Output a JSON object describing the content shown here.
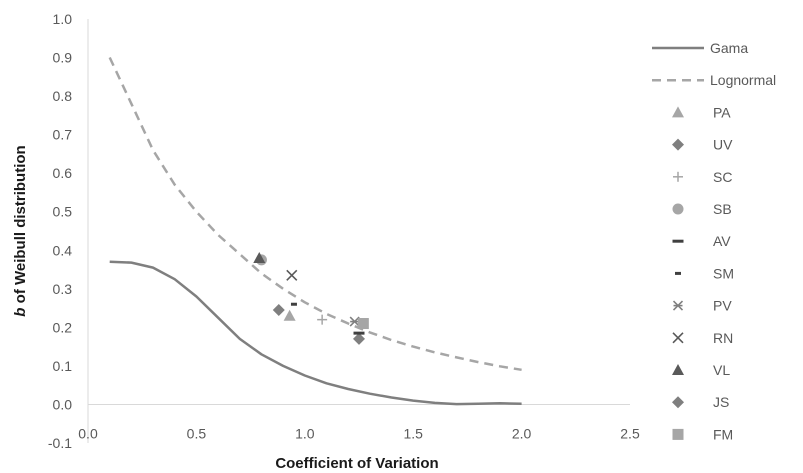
{
  "chart_data": {
    "type": "scatter",
    "title": "",
    "xlabel": "Coefficient of Variation",
    "ylabel_italic": "b",
    "ylabel_rest": " of Weibull distribution",
    "xlim": [
      0,
      2.5
    ],
    "ylim": [
      -0.1,
      1.0
    ],
    "x_ticks": [
      "0.0",
      "0.5",
      "1.0",
      "1.5",
      "2.0",
      "2.5"
    ],
    "y_ticks": [
      "-0.1",
      "0.0",
      "0.1",
      "0.2",
      "0.3",
      "0.4",
      "0.5",
      "0.6",
      "0.7",
      "0.8",
      "0.9",
      "1.0"
    ],
    "grid": false,
    "legend_position": "right",
    "lines": [
      {
        "name": "Gama",
        "style": "solid",
        "color": "#7f7f7f",
        "x": [
          0.1,
          0.2,
          0.3,
          0.4,
          0.5,
          0.6,
          0.7,
          0.8,
          0.9,
          1.0,
          1.1,
          1.2,
          1.3,
          1.4,
          1.5,
          1.6,
          1.7,
          1.8,
          1.9,
          2.0
        ],
        "y": [
          0.37,
          0.368,
          0.355,
          0.325,
          0.28,
          0.225,
          0.17,
          0.13,
          0.1,
          0.075,
          0.055,
          0.04,
          0.028,
          0.018,
          0.01,
          0.004,
          0.001,
          0.002,
          0.003,
          0.002
        ]
      },
      {
        "name": "Lognormal",
        "style": "dashed",
        "color": "#a6a6a6",
        "x": [
          0.1,
          0.2,
          0.3,
          0.4,
          0.5,
          0.6,
          0.7,
          0.8,
          0.9,
          1.0,
          1.1,
          1.2,
          1.3,
          1.4,
          1.5,
          1.6,
          1.7,
          1.8,
          1.9,
          2.0
        ],
        "y": [
          0.9,
          0.78,
          0.66,
          0.57,
          0.5,
          0.44,
          0.39,
          0.34,
          0.3,
          0.265,
          0.235,
          0.21,
          0.187,
          0.167,
          0.15,
          0.135,
          0.122,
          0.11,
          0.099,
          0.09
        ]
      }
    ],
    "series": [
      {
        "name": "PA",
        "marker": "triangle",
        "color": "#a6a6a6",
        "points": [
          [
            0.93,
            0.23
          ]
        ]
      },
      {
        "name": "UV",
        "marker": "diamond",
        "color": "#7f7f7f",
        "points": [
          [
            1.25,
            0.17
          ]
        ]
      },
      {
        "name": "SC",
        "marker": "plus",
        "color": "#a6a6a6",
        "points": [
          [
            1.08,
            0.22
          ]
        ]
      },
      {
        "name": "SB",
        "marker": "circle",
        "color": "#a6a6a6",
        "points": [
          [
            0.8,
            0.375
          ]
        ]
      },
      {
        "name": "AV",
        "marker": "dash",
        "color": "#404040",
        "points": [
          [
            1.25,
            0.185
          ]
        ]
      },
      {
        "name": "SM",
        "marker": "shortdash",
        "color": "#404040",
        "points": [
          [
            0.95,
            0.26
          ]
        ]
      },
      {
        "name": "PV",
        "marker": "star",
        "color": "#7f7f7f",
        "points": [
          [
            1.23,
            0.215
          ]
        ]
      },
      {
        "name": "RN",
        "marker": "x",
        "color": "#595959",
        "points": [
          [
            0.94,
            0.335
          ]
        ]
      },
      {
        "name": "VL",
        "marker": "triangle",
        "color": "#595959",
        "points": [
          [
            0.79,
            0.38
          ]
        ]
      },
      {
        "name": "JS",
        "marker": "diamond",
        "color": "#7f7f7f",
        "points": [
          [
            0.88,
            0.245
          ]
        ]
      },
      {
        "name": "FM",
        "marker": "square",
        "color": "#a6a6a6",
        "points": [
          [
            1.27,
            0.21
          ]
        ]
      }
    ]
  }
}
